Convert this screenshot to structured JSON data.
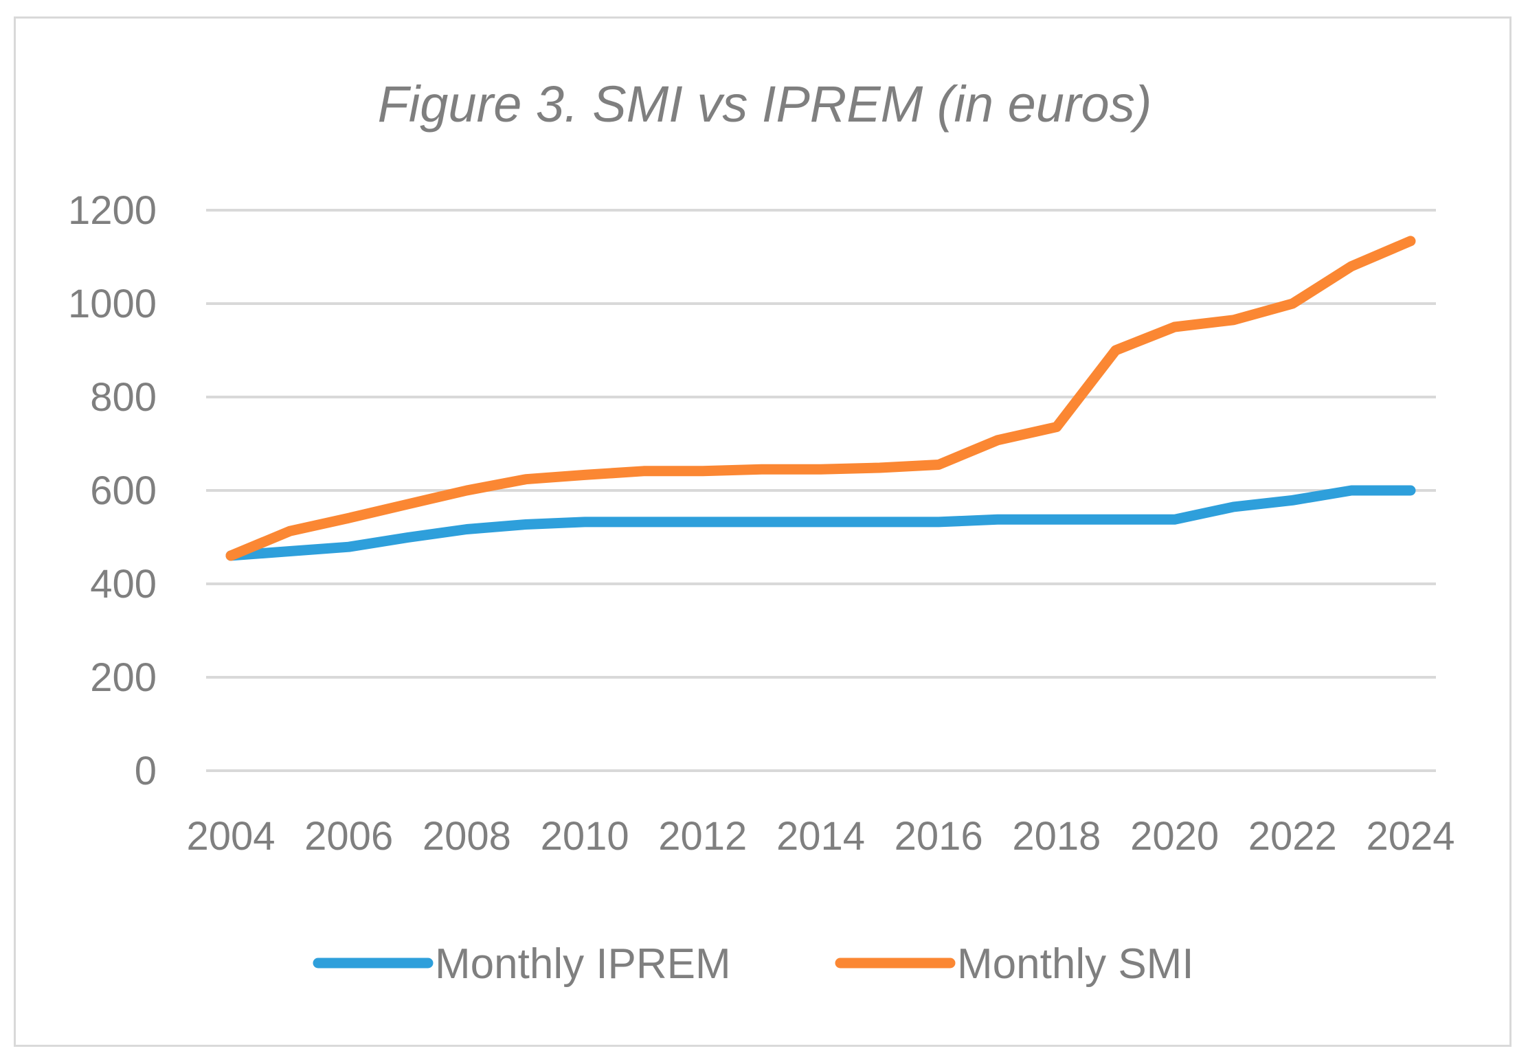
{
  "chart_data": {
    "type": "line",
    "title": "Figure 3. SMI vs IPREM (in euros)",
    "xlabel": "",
    "ylabel": "",
    "ylim": [
      0,
      1200
    ],
    "y_ticks": [
      "0",
      "200",
      "400",
      "600",
      "800",
      "1000",
      "1200"
    ],
    "x_ticks": [
      "2004",
      "2006",
      "2008",
      "2010",
      "2012",
      "2014",
      "2016",
      "2018",
      "2020",
      "2022",
      "2024"
    ],
    "grid": true,
    "legend_position": "bottom",
    "x": [
      2004,
      2005,
      2006,
      2007,
      2008,
      2009,
      2010,
      2011,
      2012,
      2013,
      2014,
      2015,
      2016,
      2017,
      2018,
      2019,
      2020,
      2021,
      2022,
      2023,
      2024
    ],
    "series": [
      {
        "name": "Monthly IPREM",
        "color": "#2e9fdb",
        "values": [
          460.5,
          469.8,
          479.1,
          499.2,
          516.9,
          527.2,
          532.5,
          532.5,
          532.5,
          532.5,
          532.5,
          532.5,
          532.5,
          537.8,
          537.8,
          537.8,
          537.8,
          564.9,
          579.0,
          600.0,
          600.0
        ]
      },
      {
        "name": "Monthly SMI",
        "color": "#fb8733",
        "values": [
          460.5,
          513.0,
          540.9,
          570.6,
          600.0,
          624.0,
          633.3,
          641.4,
          641.4,
          645.3,
          645.3,
          648.6,
          655.2,
          707.6,
          735.9,
          900.0,
          950.0,
          965.0,
          1000.0,
          1080.0,
          1134.0
        ]
      }
    ]
  }
}
